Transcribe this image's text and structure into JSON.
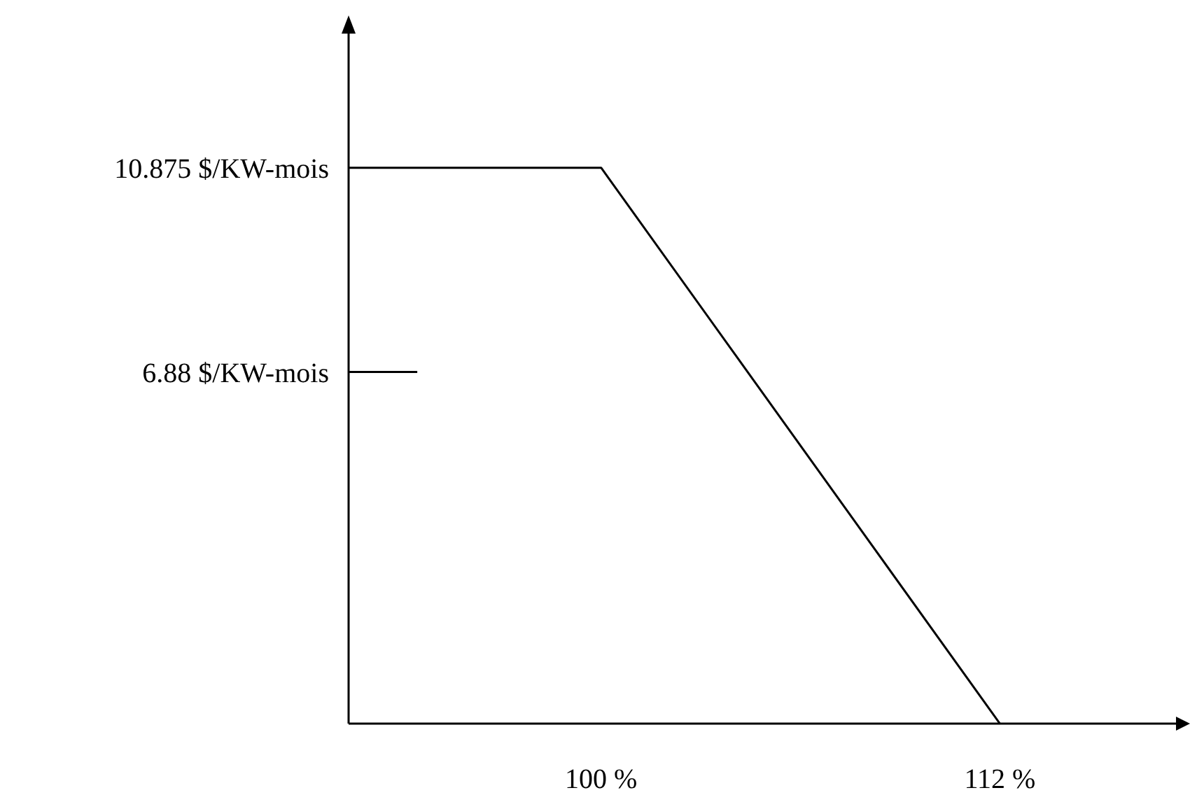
{
  "chart_data": {
    "type": "line",
    "x": [
      92.4,
      100,
      112
    ],
    "values": [
      10.875,
      10.875,
      0
    ],
    "color": "#000000",
    "marker": "none",
    "xlim": [
      92.4,
      117.3
    ],
    "xticks": [
      {
        "value": 100,
        "label": "100 %"
      },
      {
        "value": 112,
        "label": "112 %"
      }
    ],
    "ref_lines": [
      {
        "axis": "y",
        "value": 6.88,
        "color": "#000000"
      }
    ],
    "ylim": [
      0,
      13.5
    ],
    "yticks": [
      {
        "value": 6.88,
        "label": "6.88 $/KW-mois"
      },
      {
        "value": 10.875,
        "label": "10.875 $/KW-mois"
      }
    ]
  }
}
